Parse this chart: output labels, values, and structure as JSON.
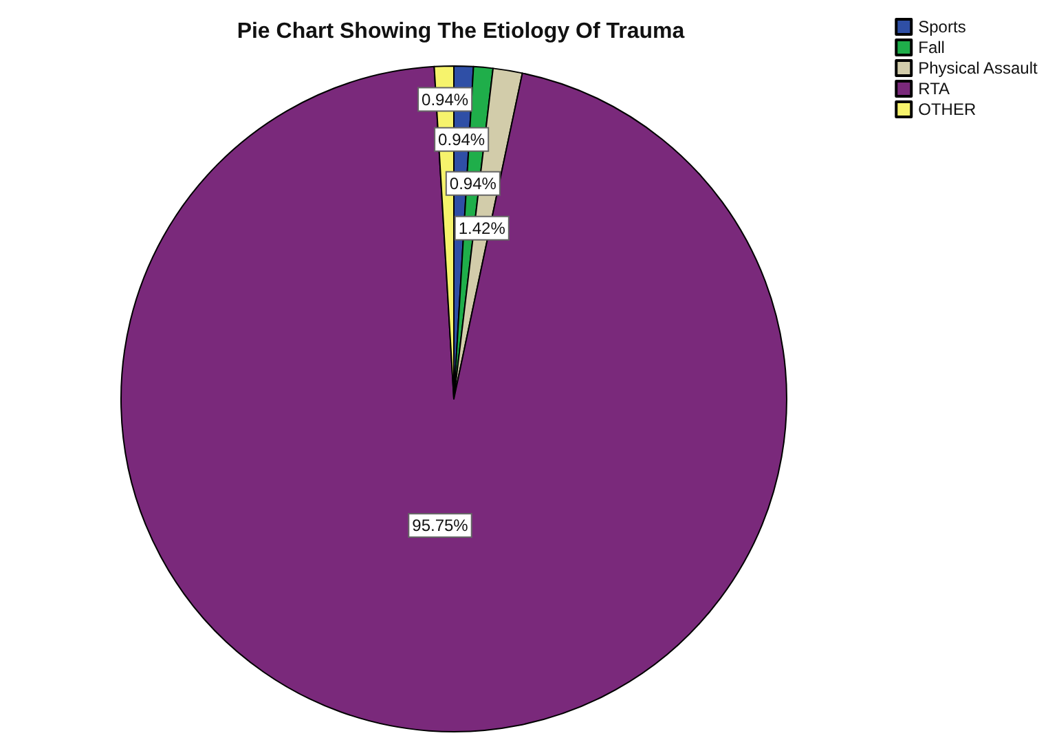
{
  "chart_data": {
    "type": "pie",
    "title": "Pie Chart Showing The Etiology Of Trauma",
    "categories": [
      "Sports",
      "Fall",
      "Physical Assault",
      "RTA",
      "OTHER"
    ],
    "values": [
      0.94,
      0.94,
      1.42,
      95.75,
      0.94
    ],
    "colors": [
      "#2f4fa6",
      "#1fae4a",
      "#d2ccaa",
      "#7a297b",
      "#f6f36c"
    ],
    "value_labels": [
      "0.94%",
      "0.94%",
      "1.42%",
      "95.75%",
      "0.94%"
    ],
    "legend": "top right"
  }
}
